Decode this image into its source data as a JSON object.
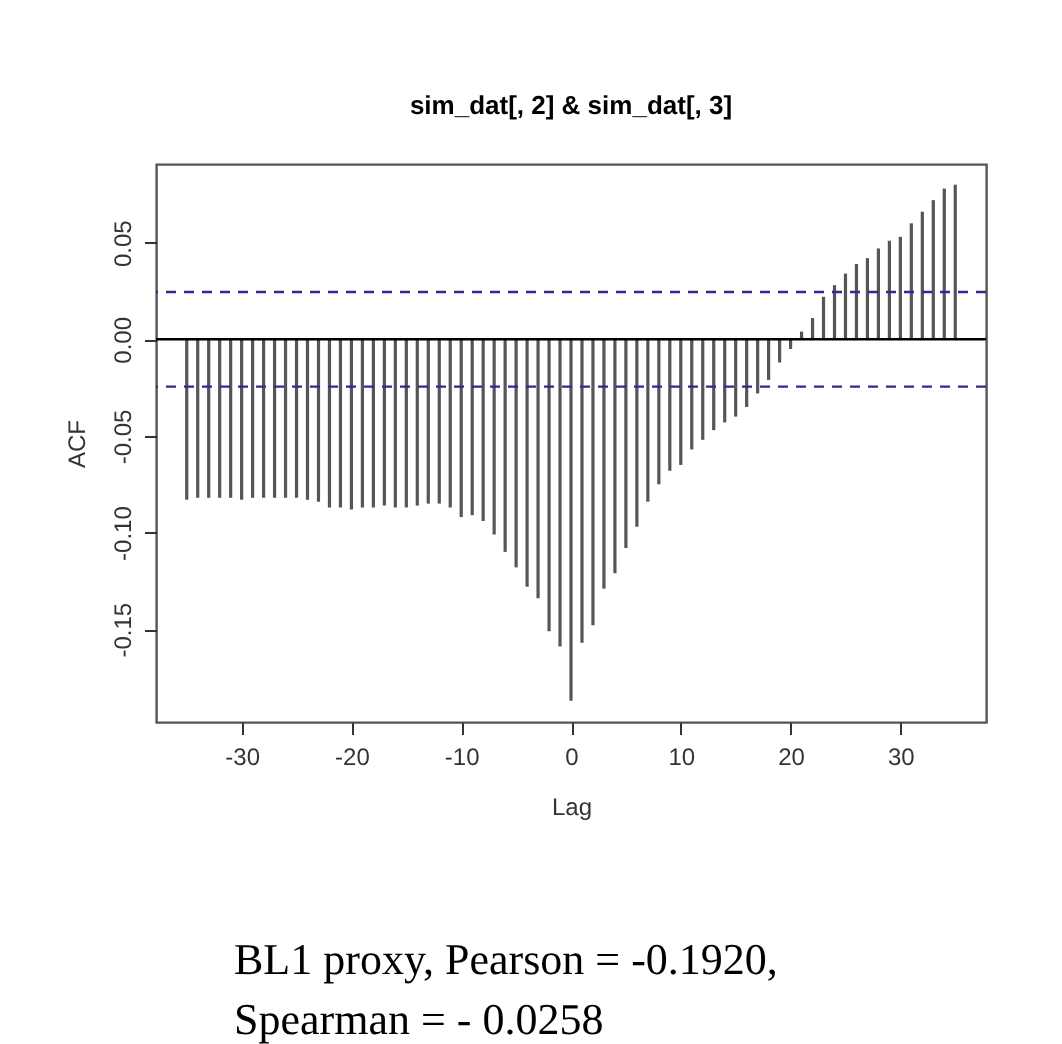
{
  "chart_data": {
    "type": "bar",
    "title": "sim_dat[, 2] & sim_dat[, 3]",
    "xlabel": "Lag",
    "ylabel": "ACF",
    "x": [
      -35,
      -34,
      -33,
      -32,
      -31,
      -30,
      -29,
      -28,
      -27,
      -26,
      -25,
      -24,
      -23,
      -22,
      -21,
      -20,
      -19,
      -18,
      -17,
      -16,
      -15,
      -14,
      -13,
      -12,
      -11,
      -10,
      -9,
      -8,
      -7,
      -6,
      -5,
      -4,
      -3,
      -2,
      -1,
      0,
      1,
      2,
      3,
      4,
      5,
      6,
      7,
      8,
      9,
      10,
      11,
      12,
      13,
      14,
      15,
      16,
      17,
      18,
      19,
      20,
      21,
      22,
      23,
      24,
      25,
      26,
      27,
      28,
      29,
      30,
      31,
      32,
      33,
      34,
      35
    ],
    "values": [
      -0.083,
      -0.082,
      -0.082,
      -0.082,
      -0.082,
      -0.083,
      -0.082,
      -0.082,
      -0.082,
      -0.082,
      -0.082,
      -0.083,
      -0.084,
      -0.087,
      -0.087,
      -0.088,
      -0.087,
      -0.087,
      -0.086,
      -0.087,
      -0.087,
      -0.086,
      -0.085,
      -0.085,
      -0.087,
      -0.092,
      -0.091,
      -0.094,
      -0.101,
      -0.11,
      -0.118,
      -0.128,
      -0.134,
      -0.151,
      -0.159,
      -0.187,
      -0.157,
      -0.148,
      -0.129,
      -0.121,
      -0.108,
      -0.097,
      -0.084,
      -0.075,
      -0.068,
      -0.065,
      -0.057,
      -0.052,
      -0.047,
      -0.043,
      -0.04,
      -0.035,
      -0.028,
      -0.021,
      -0.012,
      -0.005,
      0.004,
      0.011,
      0.022,
      0.028,
      0.034,
      0.039,
      0.042,
      0.047,
      0.051,
      0.053,
      0.06,
      0.066,
      0.072,
      0.078,
      0.08
    ],
    "color": "#555555",
    "xlim": [
      -37.8,
      37.8
    ],
    "ylim": [
      -0.198,
      0.0907
    ],
    "xticks": [
      -30,
      -20,
      -10,
      0,
      10,
      20,
      30
    ],
    "yticks": [
      {
        "value": -0.15,
        "label": "-0.15"
      },
      {
        "value": -0.1,
        "label": "-0.10"
      },
      {
        "value": -0.05,
        "label": "-0.05"
      },
      {
        "value": 0,
        "label": "0.00"
      },
      {
        "value": 0.05,
        "label": "0.05"
      }
    ],
    "ref_lines": [
      {
        "axis": "y",
        "value": 0,
        "label": null,
        "color": "#000000",
        "line_style": "solid"
      },
      {
        "axis": "y",
        "value": 0.0245,
        "label": null,
        "color": "#2b2b99",
        "line_style": "dashed"
      },
      {
        "axis": "y",
        "value": -0.0245,
        "label": null,
        "color": "#2b2b99",
        "line_style": "dashed"
      }
    ],
    "annotations": [
      "BL1 proxy, Pearson = -0.1920,",
      "Spearman =  - 0.0258"
    ],
    "grid": false
  }
}
